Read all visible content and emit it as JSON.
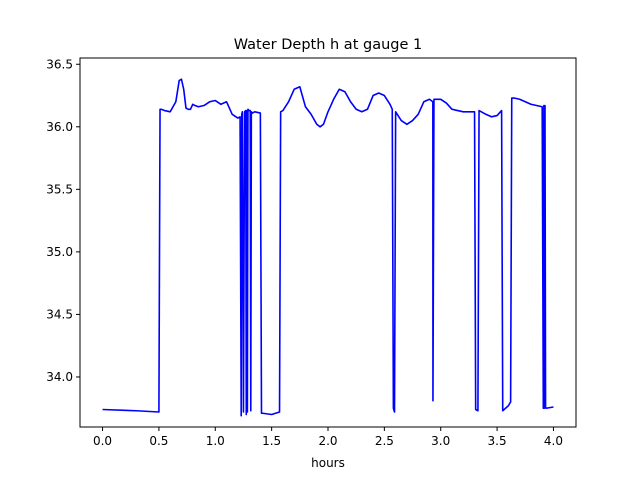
{
  "chart_data": {
    "type": "line",
    "title": "Water Depth h at gauge 1",
    "xlabel": "hours",
    "ylabel": "",
    "xlim": [
      -0.2,
      4.2
    ],
    "ylim": [
      33.6,
      36.55
    ],
    "xticks": [
      0.0,
      0.5,
      1.0,
      1.5,
      2.0,
      2.5,
      3.0,
      3.5,
      4.0
    ],
    "xtick_labels": [
      "0.0",
      "0.5",
      "1.0",
      "1.5",
      "2.0",
      "2.5",
      "3.0",
      "3.5",
      "4.0"
    ],
    "yticks": [
      34.0,
      34.5,
      35.0,
      35.5,
      36.0,
      36.5
    ],
    "ytick_labels": [
      "34.0",
      "34.5",
      "35.0",
      "35.5",
      "36.0",
      "36.5"
    ],
    "grid": false,
    "series": [
      {
        "name": "",
        "color": "#0000ff",
        "x": [
          0.0,
          0.3,
          0.5,
          0.51,
          0.52,
          0.55,
          0.6,
          0.65,
          0.68,
          0.7,
          0.72,
          0.74,
          0.76,
          0.78,
          0.8,
          0.82,
          0.85,
          0.9,
          0.95,
          1.0,
          1.05,
          1.1,
          1.15,
          1.2,
          1.22,
          1.23,
          1.235,
          1.24,
          1.25,
          1.26,
          1.27,
          1.275,
          1.28,
          1.285,
          1.29,
          1.3,
          1.31,
          1.315,
          1.32,
          1.33,
          1.35,
          1.4,
          1.41,
          1.42,
          1.5,
          1.57,
          1.58,
          1.6,
          1.65,
          1.7,
          1.75,
          1.8,
          1.85,
          1.9,
          1.93,
          1.96,
          2.0,
          2.05,
          2.1,
          2.15,
          2.2,
          2.25,
          2.3,
          2.35,
          2.4,
          2.45,
          2.5,
          2.55,
          2.57,
          2.58,
          2.59,
          2.6,
          2.65,
          2.7,
          2.75,
          2.8,
          2.85,
          2.9,
          2.93,
          2.931,
          2.94,
          3.0,
          3.05,
          3.1,
          3.15,
          3.2,
          3.25,
          3.3,
          3.31,
          3.33,
          3.34,
          3.4,
          3.45,
          3.5,
          3.54,
          3.55,
          3.6,
          3.62,
          3.63,
          3.65,
          3.7,
          3.75,
          3.8,
          3.85,
          3.9,
          3.91,
          3.915,
          3.92,
          3.925,
          3.93,
          3.935,
          4.0
        ],
        "y": [
          33.74,
          33.73,
          33.72,
          36.14,
          36.14,
          36.13,
          36.12,
          36.2,
          36.37,
          36.38,
          36.3,
          36.15,
          36.14,
          36.14,
          36.18,
          36.17,
          36.16,
          36.17,
          36.2,
          36.21,
          36.18,
          36.2,
          36.1,
          36.07,
          36.08,
          33.69,
          36.1,
          36.12,
          33.72,
          36.12,
          36.13,
          33.7,
          36.13,
          33.72,
          36.14,
          36.13,
          36.13,
          33.73,
          36.12,
          36.11,
          36.12,
          36.11,
          33.71,
          33.71,
          33.7,
          33.72,
          36.12,
          36.13,
          36.2,
          36.3,
          36.32,
          36.16,
          36.1,
          36.02,
          36.0,
          36.02,
          36.12,
          36.22,
          36.3,
          36.28,
          36.2,
          36.14,
          36.12,
          36.14,
          36.25,
          36.27,
          36.25,
          36.18,
          36.14,
          33.75,
          33.72,
          36.12,
          36.05,
          36.02,
          36.05,
          36.1,
          36.2,
          36.22,
          36.2,
          33.81,
          36.22,
          36.22,
          36.19,
          36.14,
          36.13,
          36.12,
          36.12,
          36.12,
          33.74,
          33.73,
          36.13,
          36.1,
          36.08,
          36.09,
          36.13,
          33.73,
          33.77,
          33.8,
          36.23,
          36.23,
          36.22,
          36.2,
          36.18,
          36.17,
          36.16,
          33.75,
          36.17,
          33.75,
          36.17,
          33.76,
          33.75,
          33.76
        ]
      }
    ]
  }
}
